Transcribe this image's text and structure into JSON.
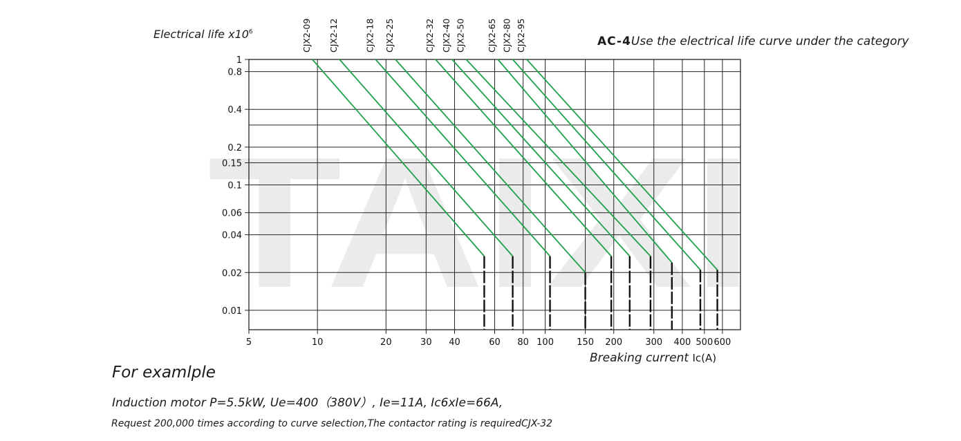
{
  "page": {
    "title_left": "Electrical life",
    "title_left_unit": "x10",
    "title_left_exponent": "6",
    "category": "AC-4",
    "category_text": "Use the electrical life curve under the category",
    "watermark": "TAIXI",
    "example": {
      "heading": "For examlple",
      "line1": "Induction motor P=5.5kW, Ue=400（380V）, Ie=11A, Ic6xIe=66A,",
      "line2": "Request 200,000 times according to curve selection,The contactor rating is requiredCJX-32"
    }
  },
  "chart_data": {
    "type": "line",
    "x_scale": "log",
    "y_scale": "log",
    "xlabel": "Breaking current",
    "xlabel_unit": "Ic(A)",
    "ylabel": "Electrical life x10^6",
    "xlim": [
      5,
      720
    ],
    "ylim": [
      0.007,
      1
    ],
    "xticks": [
      5,
      10,
      20,
      30,
      40,
      60,
      80,
      100,
      150,
      200,
      300,
      400,
      500,
      600
    ],
    "yticks": [
      1,
      0.8,
      0.4,
      0.2,
      0.15,
      0.1,
      0.06,
      0.04,
      0.02,
      0.01
    ],
    "extra_hlines": [
      0.3
    ],
    "extra_vlines": [
      720
    ],
    "grid": true,
    "line_color": "#1ea14b",
    "cutoff_color": "#111111",
    "series": [
      {
        "name": "CJX2-09",
        "x": [
          9.5,
          54
        ],
        "y": [
          1,
          0.027
        ],
        "cutoff": 54
      },
      {
        "name": "CJX2-12",
        "x": [
          12.5,
          72
        ],
        "y": [
          1,
          0.027
        ],
        "cutoff": 72
      },
      {
        "name": "CJX2-18",
        "x": [
          18,
          105
        ],
        "y": [
          1,
          0.027
        ],
        "cutoff": 105
      },
      {
        "name": "CJX2-25",
        "x": [
          22,
          150
        ],
        "y": [
          1,
          0.02
        ],
        "cutoff": 150
      },
      {
        "name": "CJX2-32",
        "x": [
          33,
          195
        ],
        "y": [
          1,
          0.027
        ],
        "cutoff": 195
      },
      {
        "name": "CJX2-40",
        "x": [
          39,
          235
        ],
        "y": [
          1,
          0.027
        ],
        "cutoff": 235
      },
      {
        "name": "CJX2-50",
        "x": [
          45,
          290
        ],
        "y": [
          1,
          0.027
        ],
        "cutoff": 290
      },
      {
        "name": "CJX2-65",
        "x": [
          62,
          360
        ],
        "y": [
          1,
          0.024
        ],
        "cutoff": 360
      },
      {
        "name": "CJX2-80",
        "x": [
          72,
          480
        ],
        "y": [
          1,
          0.021
        ],
        "cutoff": 480
      },
      {
        "name": "CJX2-95",
        "x": [
          83,
          570
        ],
        "y": [
          1,
          0.021
        ],
        "cutoff": 570
      }
    ]
  }
}
